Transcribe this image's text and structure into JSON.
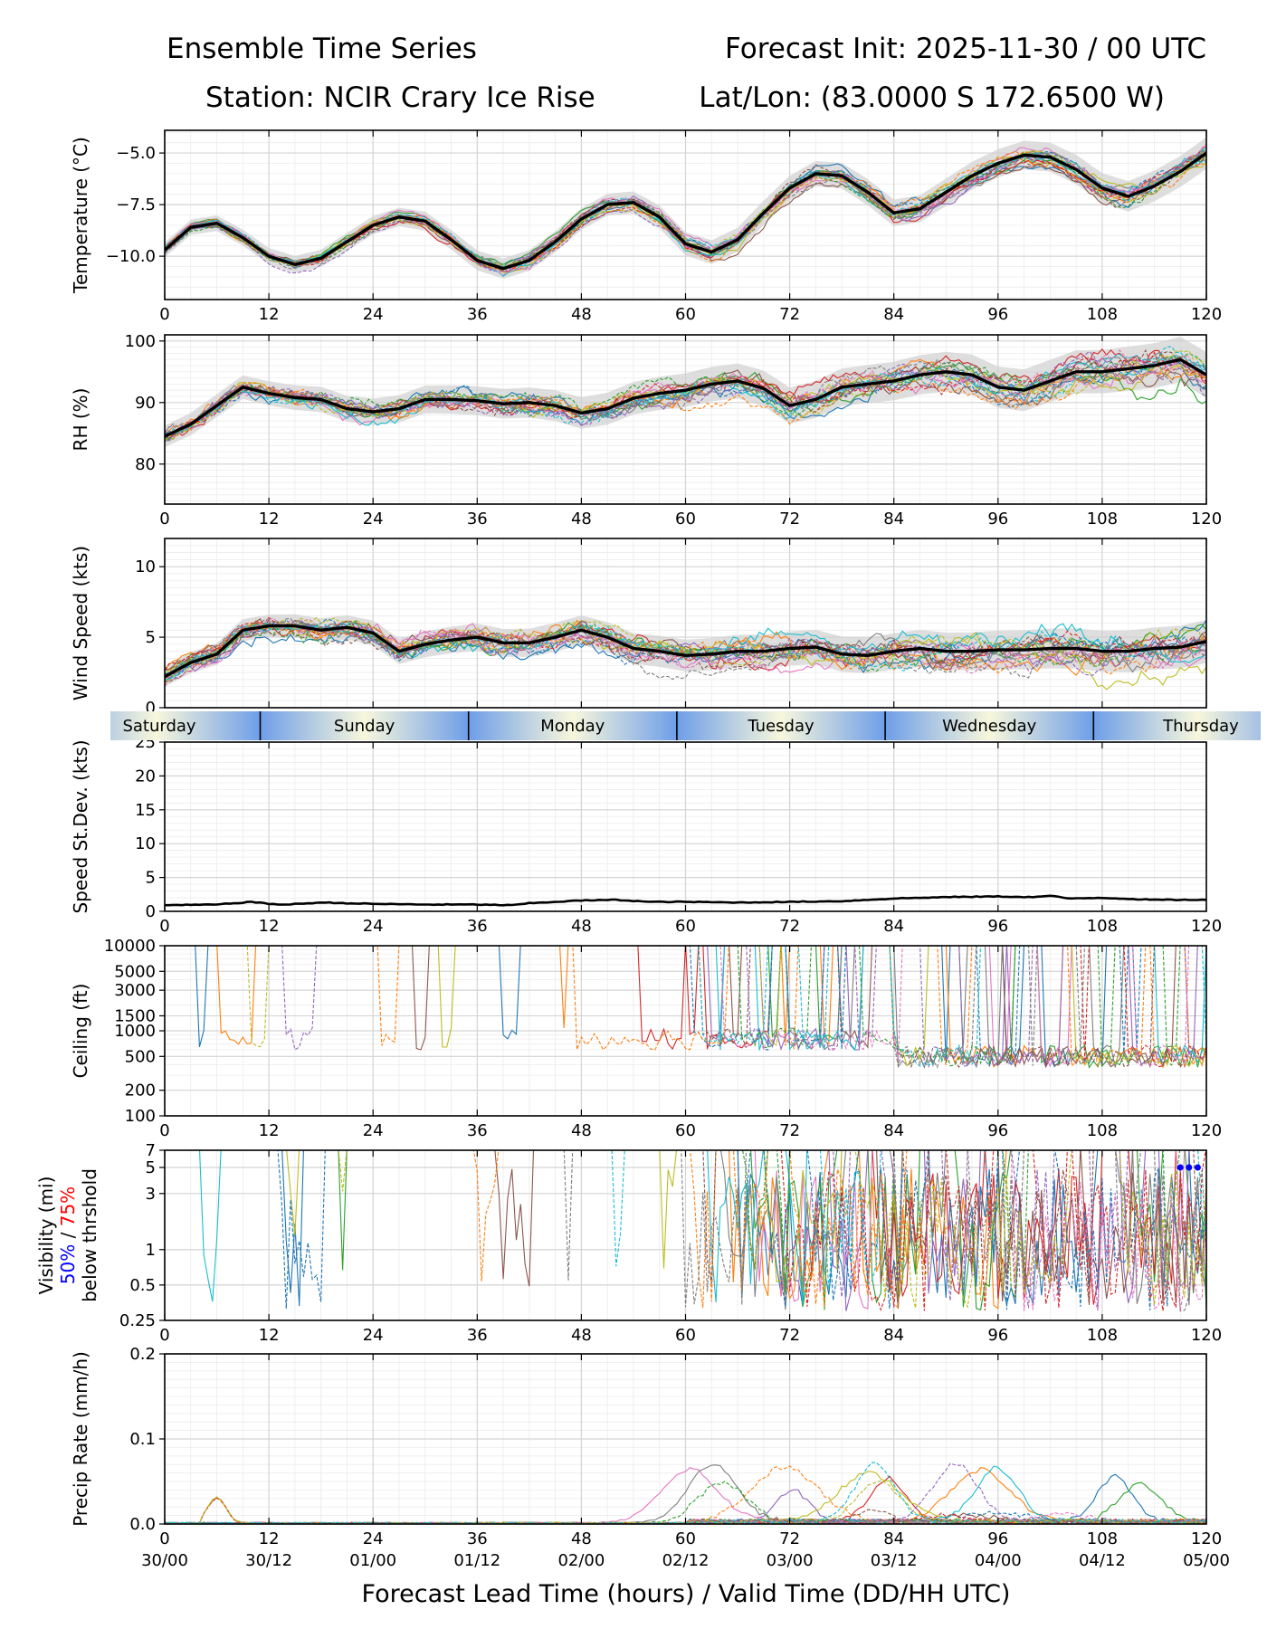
{
  "title": {
    "left_line1": "Ensemble Time Series",
    "right_line1": "Forecast Init: 2025-11-30 / 00 UTC",
    "left_line2": "Station: NCIR Crary Ice Rise",
    "right_line2": "Lat/Lon: (83.0000 S 172.6500 W)"
  },
  "x_axis": {
    "label": "Forecast Lead Time (hours) / Valid Time (DD/HH UTC)",
    "range": [
      0,
      120
    ],
    "ticks": [
      0,
      12,
      24,
      36,
      48,
      60,
      72,
      84,
      96,
      108,
      120
    ],
    "tick_labels": [
      "0",
      "12",
      "24",
      "36",
      "48",
      "60",
      "72",
      "84",
      "96",
      "108",
      "120"
    ],
    "valid_time_labels": [
      "30/00",
      "30/12",
      "01/00",
      "01/12",
      "02/00",
      "02/12",
      "03/00",
      "03/12",
      "04/00",
      "04/12",
      "05/00"
    ]
  },
  "day_band": {
    "days": [
      "Saturday",
      "Sunday",
      "Monday",
      "Tuesday",
      "Wednesday",
      "Thursday"
    ],
    "colors": {
      "light": "#f8f7dc",
      "dark": "#6e9ee8"
    }
  },
  "colors": {
    "mean": "#000000",
    "spread": "#d0d0d0",
    "members": [
      "#1f77b4",
      "#ff7f0e",
      "#2ca02c",
      "#d62728",
      "#9467bd",
      "#8c564b",
      "#e377c2",
      "#7f7f7f",
      "#bcbd22",
      "#17becf"
    ],
    "threshold_50": "#0000ff",
    "threshold_75": "#ff0000"
  },
  "chart_data": [
    {
      "id": "temperature",
      "type": "line",
      "ylabel": "Temperature (°C)",
      "ylim": [
        -12.1,
        -3.9
      ],
      "yscale": "linear",
      "yticks": [
        -10.0,
        -7.5,
        -5.0
      ],
      "ytick_labels": [
        "−10.0",
        "−7.5",
        "−5.0"
      ],
      "ensemble_members": 20,
      "mean_series": {
        "name": "Ensemble mean",
        "x": [
          0,
          3,
          6,
          9,
          12,
          15,
          18,
          21,
          24,
          27,
          30,
          33,
          36,
          39,
          42,
          45,
          48,
          51,
          54,
          57,
          60,
          63,
          66,
          69,
          72,
          75,
          78,
          81,
          84,
          87,
          90,
          93,
          96,
          99,
          102,
          105,
          108,
          111,
          114,
          117,
          120
        ],
        "values": [
          -9.7,
          -8.6,
          -8.4,
          -9.1,
          -10.0,
          -10.4,
          -10.1,
          -9.3,
          -8.5,
          -8.1,
          -8.3,
          -9.2,
          -10.2,
          -10.6,
          -10.2,
          -9.3,
          -8.2,
          -7.5,
          -7.4,
          -8.1,
          -9.4,
          -9.8,
          -9.2,
          -7.9,
          -6.7,
          -6.0,
          -6.1,
          -6.9,
          -7.9,
          -7.7,
          -6.9,
          -6.1,
          -5.5,
          -5.1,
          -5.2,
          -5.8,
          -6.7,
          -7.1,
          -6.6,
          -5.9,
          -5.0
        ]
      }
    },
    {
      "id": "rh",
      "type": "line",
      "ylabel": "RH (%)",
      "ylim": [
        73.5,
        101
      ],
      "yscale": "linear",
      "yticks": [
        80,
        90,
        100
      ],
      "ytick_labels": [
        "80",
        "90",
        "100"
      ],
      "ensemble_members": 20,
      "mean_series": {
        "name": "Ensemble mean",
        "x": [
          0,
          3,
          6,
          9,
          12,
          15,
          18,
          21,
          24,
          27,
          30,
          33,
          36,
          39,
          42,
          45,
          48,
          51,
          54,
          57,
          60,
          63,
          66,
          69,
          72,
          75,
          78,
          81,
          84,
          87,
          90,
          93,
          96,
          99,
          102,
          105,
          108,
          111,
          114,
          117,
          120
        ],
        "values": [
          84.5,
          86.5,
          89.5,
          92.5,
          91.5,
          90.8,
          90.5,
          89.0,
          88.5,
          89.0,
          90.5,
          90.5,
          90.3,
          89.8,
          90.0,
          89.5,
          88.3,
          89.0,
          90.7,
          91.5,
          92.0,
          93.0,
          93.5,
          92.3,
          89.5,
          90.5,
          92.5,
          93.0,
          93.5,
          94.5,
          95.0,
          94.5,
          92.5,
          92.0,
          93.5,
          95.0,
          95.0,
          95.5,
          96.0,
          97.0,
          94.5
        ]
      }
    },
    {
      "id": "wind",
      "type": "line",
      "ylabel": "Wind Speed (kts)",
      "ylim": [
        0,
        12
      ],
      "yscale": "linear",
      "yticks": [
        0,
        5,
        10
      ],
      "ytick_labels": [
        "0",
        "5",
        "10"
      ],
      "ensemble_members": 20,
      "mean_series": {
        "name": "Ensemble mean",
        "x": [
          0,
          3,
          6,
          9,
          12,
          15,
          18,
          21,
          24,
          27,
          30,
          33,
          36,
          39,
          42,
          45,
          48,
          51,
          54,
          57,
          60,
          63,
          66,
          69,
          72,
          75,
          78,
          81,
          84,
          87,
          90,
          93,
          96,
          99,
          102,
          105,
          108,
          111,
          114,
          117,
          120
        ],
        "values": [
          2.2,
          3.2,
          3.8,
          5.5,
          5.8,
          5.8,
          5.5,
          5.7,
          5.3,
          4.0,
          4.5,
          4.8,
          5.0,
          4.6,
          4.6,
          5.0,
          5.5,
          5.0,
          4.2,
          4.0,
          3.7,
          3.8,
          4.0,
          4.0,
          4.2,
          4.3,
          3.8,
          3.7,
          4.0,
          4.2,
          4.0,
          4.0,
          4.1,
          4.1,
          4.2,
          4.2,
          4.0,
          4.0,
          4.2,
          4.3,
          4.7
        ]
      }
    },
    {
      "id": "speed_stdev",
      "type": "line",
      "ylabel": "Speed St.Dev. (kts)",
      "ylim": [
        0,
        25
      ],
      "yscale": "linear",
      "yticks": [
        0,
        5,
        10,
        15,
        20,
        25
      ],
      "ytick_labels": [
        "0",
        "5",
        "10",
        "15",
        "20",
        "25"
      ],
      "series": [
        {
          "name": "Wind speed standard deviation",
          "x": [
            0,
            6,
            10,
            12,
            14,
            18,
            24,
            30,
            36,
            40,
            42,
            48,
            52,
            56,
            60,
            66,
            72,
            78,
            84,
            90,
            96,
            100,
            102,
            104,
            108,
            114,
            120
          ],
          "values": [
            0.9,
            1.0,
            1.4,
            1.1,
            1.0,
            1.3,
            1.1,
            1.0,
            1.0,
            0.9,
            1.2,
            1.6,
            1.7,
            1.4,
            1.4,
            1.3,
            1.4,
            1.5,
            1.9,
            2.1,
            2.2,
            2.1,
            2.3,
            1.9,
            2.0,
            1.7,
            1.7
          ]
        }
      ]
    },
    {
      "id": "ceiling",
      "type": "line",
      "ylabel": "Ceiling (ft)",
      "ylim": [
        100,
        10000
      ],
      "yscale": "log",
      "yticks": [
        100,
        200,
        500,
        1000,
        1500,
        3000,
        5000,
        10000
      ],
      "ytick_labels": [
        "100",
        "200",
        "500",
        "1000",
        "1500",
        "3000",
        "5000",
        "10000"
      ],
      "ensemble_members": 20
    },
    {
      "id": "visibility",
      "type": "line",
      "ylabel_lines": [
        "Visibility (mi)",
        "50%",
        "/",
        "75%",
        "below thrshold"
      ],
      "ylim": [
        0.25,
        7
      ],
      "yscale": "log",
      "yticks": [
        0.25,
        0.5,
        1,
        3,
        5,
        7
      ],
      "ytick_labels": [
        "0.25",
        "0.5",
        "1",
        "3",
        "5",
        "7"
      ],
      "ensemble_members": 20,
      "threshold_markers": {
        "x": [
          117,
          118,
          119
        ],
        "y": 5
      }
    },
    {
      "id": "precip",
      "type": "line",
      "ylabel": "Precip Rate (mm/h)",
      "ylim": [
        0,
        0.2
      ],
      "yscale": "linear",
      "yticks": [
        0.0,
        0.1,
        0.2
      ],
      "ytick_labels": [
        "0.0",
        "0.1",
        "0.2"
      ],
      "ensemble_members": 20
    }
  ]
}
